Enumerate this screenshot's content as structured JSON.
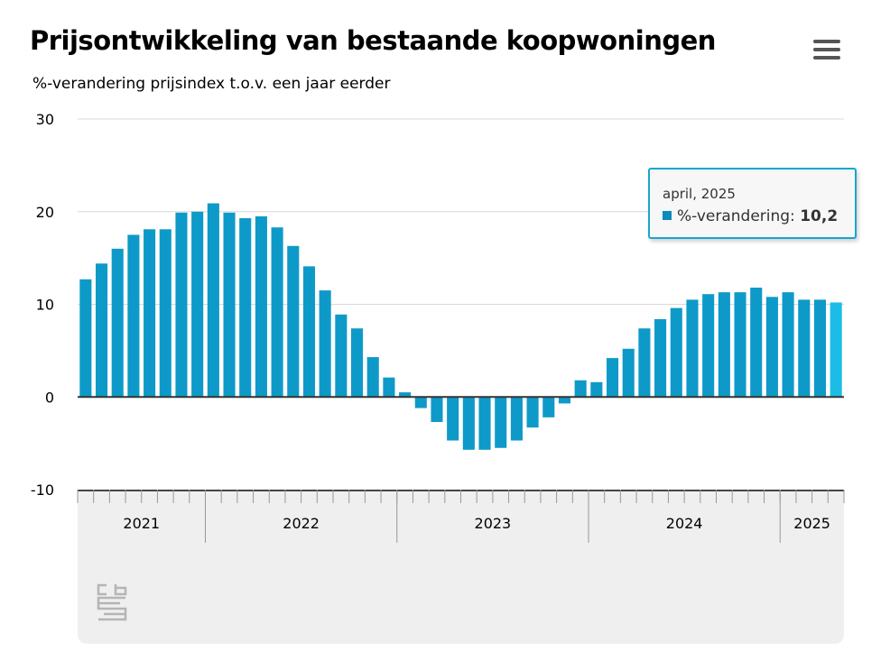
{
  "header": {
    "title": "Prijsontwikkeling van bestaande koopwoningen",
    "subtitle": "%-verandering prijsindex t.o.v. een jaar eerder"
  },
  "menu": {
    "icon": "hamburger-menu-icon"
  },
  "logo": {
    "text": "cbs",
    "icon": "cbs-logo-icon"
  },
  "tooltip": {
    "date": "april, 2025",
    "series_label": "%-verandering:",
    "value": "10,2"
  },
  "colors": {
    "bar": "#0e9ac8",
    "bar_highlight": "#1bbde6",
    "tooltip_border": "#18a6cf"
  },
  "chart_data": {
    "type": "bar",
    "title": "Prijsontwikkeling van bestaande koopwoningen",
    "subtitle": "%-verandering prijsindex t.o.v. een jaar eerder",
    "ylim": [
      -10,
      30
    ],
    "yticks": [
      "30",
      "20",
      "10",
      "0",
      "-10"
    ],
    "grid": true,
    "x_year_labels": [
      "2021",
      "2022",
      "2023",
      "2024",
      "2025"
    ],
    "series": [
      {
        "name": "%-verandering",
        "values": [
          12.7,
          14.4,
          16.0,
          17.5,
          18.1,
          18.1,
          19.9,
          20.0,
          20.9,
          19.9,
          19.3,
          19.5,
          18.3,
          16.3,
          14.1,
          11.5,
          8.9,
          7.4,
          4.3,
          2.1,
          0.5,
          -1.2,
          -2.7,
          -4.7,
          -5.7,
          -5.7,
          -5.5,
          -4.7,
          -3.3,
          -2.2,
          -0.7,
          1.8,
          1.6,
          4.2,
          5.2,
          7.4,
          8.4,
          9.6,
          10.5,
          11.1,
          11.3,
          11.3,
          11.8,
          10.8,
          11.3,
          10.5,
          10.5,
          10.2
        ]
      }
    ]
  }
}
